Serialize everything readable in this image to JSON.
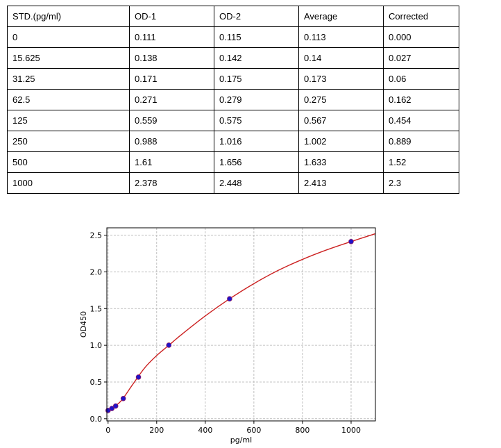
{
  "table": {
    "headers": [
      "STD.(pg/ml)",
      "OD-1",
      "OD-2",
      "Average",
      "Corrected"
    ],
    "rows": [
      [
        "0",
        "0.111",
        "0.115",
        "0.113",
        "0.000"
      ],
      [
        "15.625",
        "0.138",
        "0.142",
        "0.14",
        "0.027"
      ],
      [
        "31.25",
        "0.171",
        "0.175",
        "0.173",
        "0.06"
      ],
      [
        "62.5",
        "0.271",
        "0.279",
        "0.275",
        "0.162"
      ],
      [
        "125",
        "0.559",
        "0.575",
        "0.567",
        "0.454"
      ],
      [
        "250",
        "0.988",
        "1.016",
        "1.002",
        "0.889"
      ],
      [
        "500",
        "1.61",
        "1.656",
        "1.633",
        "1.52"
      ],
      [
        "1000",
        "2.378",
        "2.448",
        "2.413",
        "2.3"
      ]
    ]
  },
  "chart_data": {
    "type": "scatter",
    "title": "",
    "xlabel": "pg/ml",
    "ylabel": "OD450",
    "xlim": [
      -5,
      1100
    ],
    "ylim": [
      -0.03,
      2.6
    ],
    "xticks": [
      0,
      200,
      400,
      600,
      800,
      1000
    ],
    "yticks": [
      0.0,
      0.5,
      1.0,
      1.5,
      2.0,
      2.5
    ],
    "xtick_labels": [
      "0",
      "200",
      "400",
      "600",
      "800",
      "1000"
    ],
    "ytick_labels": [
      "0.0",
      "0.5",
      "1.0",
      "1.5",
      "2.0",
      "2.5"
    ],
    "grid": true,
    "series": [
      {
        "kind": "points",
        "x": [
          0,
          15.625,
          31.25,
          62.5,
          125,
          250,
          500,
          1000
        ],
        "y": [
          0.113,
          0.14,
          0.173,
          0.275,
          0.567,
          1.002,
          1.633,
          2.413
        ],
        "color": "#1f12c8",
        "edge_color": "#8a1a6a"
      },
      {
        "kind": "fitted-curve",
        "color": "#cc2222",
        "x": [
          0,
          50,
          100,
          150,
          200,
          250,
          300,
          400,
          500,
          600,
          700,
          800,
          900,
          1000,
          1100
        ],
        "y": [
          0.113,
          0.23,
          0.46,
          0.69,
          0.86,
          1.0,
          1.14,
          1.4,
          1.633,
          1.84,
          2.02,
          2.17,
          2.3,
          2.413,
          2.52
        ]
      }
    ]
  }
}
